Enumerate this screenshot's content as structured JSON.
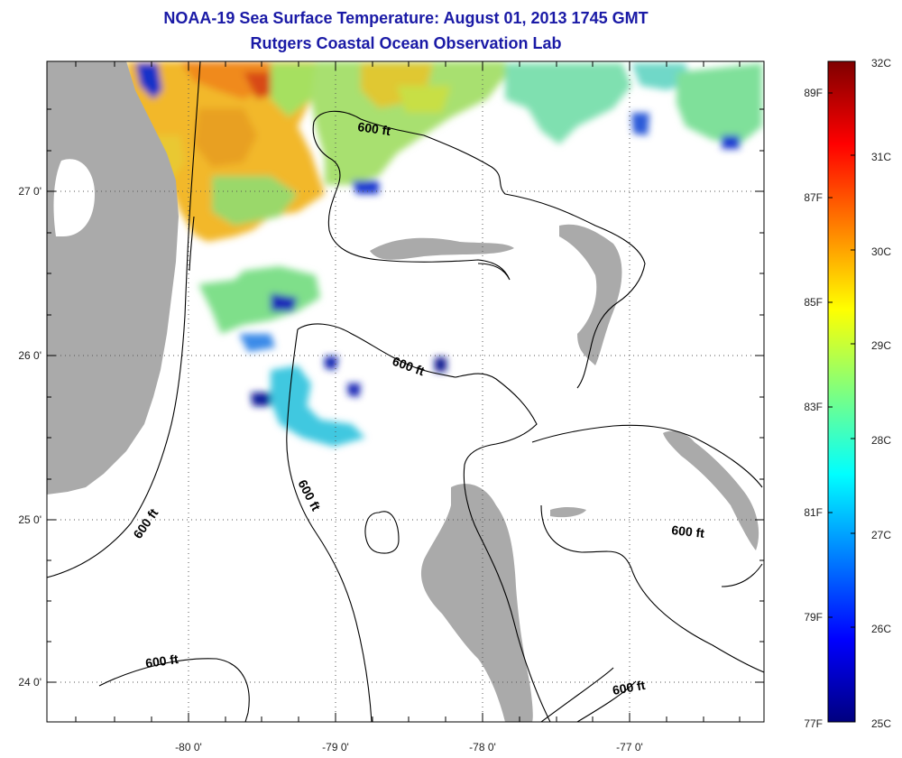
{
  "title": {
    "line1": "NOAA-19 Sea Surface Temperature:  August 01, 2013 1745 GMT",
    "line2": "Rutgers Coastal Ocean Observation Lab"
  },
  "map": {
    "lon_ticks": [
      "-80 0'",
      "-79 0'",
      "-78 0'",
      "-77 0'"
    ],
    "lat_ticks": [
      "27 0'",
      "26 0'",
      "25 0'",
      "24 0'"
    ],
    "lon_range": [
      -80.95,
      -76.15
    ],
    "lat_range": [
      23.7,
      27.8
    ],
    "contour_labels": [
      "600 ft",
      "600 ft",
      "600 ft",
      "600 ft",
      "600 ft",
      "600 ft",
      "600 ft"
    ],
    "colors": {
      "land": "#aaaaaa",
      "water": "#ffffff",
      "contour": "#000000",
      "grid": "#555555"
    }
  },
  "colorbar": {
    "celsius": [
      "32C",
      "31C",
      "30C",
      "29C",
      "28C",
      "27C",
      "26C",
      "25C"
    ],
    "fahrenheit": [
      "89F",
      "87F",
      "85F",
      "83F",
      "81F",
      "79F",
      "77F"
    ],
    "range_c": [
      25,
      32
    ],
    "colormap": [
      "#00007f",
      "#0000ff",
      "#007fff",
      "#00ffff",
      "#7fff7f",
      "#ffff00",
      "#ff7f00",
      "#ff0000",
      "#7f0000"
    ]
  }
}
